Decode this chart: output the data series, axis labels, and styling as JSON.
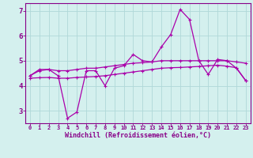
{
  "xlabel": "Windchill (Refroidissement éolien,°C)",
  "bg_color": "#d4f0ee",
  "line_color": "#aa00aa",
  "grid_color": "#b0d8d8",
  "axis_color": "#880088",
  "xlim": [
    -0.5,
    23.5
  ],
  "ylim": [
    2.5,
    7.3
  ],
  "xticks": [
    0,
    1,
    2,
    3,
    4,
    5,
    6,
    7,
    8,
    9,
    10,
    11,
    12,
    13,
    14,
    15,
    16,
    17,
    18,
    19,
    20,
    21,
    22,
    23
  ],
  "yticks": [
    3,
    4,
    5,
    6,
    7
  ],
  "line1_x": [
    0,
    1,
    2,
    3,
    4,
    5,
    6,
    7,
    8,
    9,
    10,
    11,
    12,
    13,
    14,
    15,
    16,
    17,
    18,
    19,
    20,
    21,
    22,
    23
  ],
  "line1_y": [
    4.4,
    4.65,
    4.65,
    4.4,
    2.7,
    2.95,
    4.6,
    4.6,
    4.0,
    4.7,
    4.8,
    5.25,
    5.0,
    4.95,
    5.55,
    6.05,
    7.05,
    6.65,
    5.0,
    4.45,
    5.05,
    5.0,
    4.7,
    4.2
  ],
  "line2_x": [
    0,
    1,
    2,
    3,
    4,
    5,
    6,
    7,
    8,
    9,
    10,
    11,
    12,
    13,
    14,
    15,
    16,
    17,
    18,
    19,
    20,
    21,
    22,
    23
  ],
  "line2_y": [
    4.4,
    4.6,
    4.65,
    4.6,
    4.6,
    4.65,
    4.7,
    4.7,
    4.75,
    4.8,
    4.85,
    4.9,
    4.92,
    4.95,
    5.0,
    5.0,
    5.0,
    5.0,
    5.0,
    5.0,
    5.0,
    5.0,
    4.95,
    4.9
  ],
  "line3_x": [
    0,
    1,
    2,
    3,
    4,
    5,
    6,
    7,
    8,
    9,
    10,
    11,
    12,
    13,
    14,
    15,
    16,
    17,
    18,
    19,
    20,
    21,
    22,
    23
  ],
  "line3_y": [
    4.3,
    4.32,
    4.33,
    4.3,
    4.3,
    4.33,
    4.35,
    4.37,
    4.4,
    4.45,
    4.5,
    4.55,
    4.6,
    4.65,
    4.7,
    4.72,
    4.73,
    4.75,
    4.77,
    4.8,
    4.82,
    4.78,
    4.72,
    4.2
  ],
  "markersize": 2.5,
  "linewidth": 0.9
}
